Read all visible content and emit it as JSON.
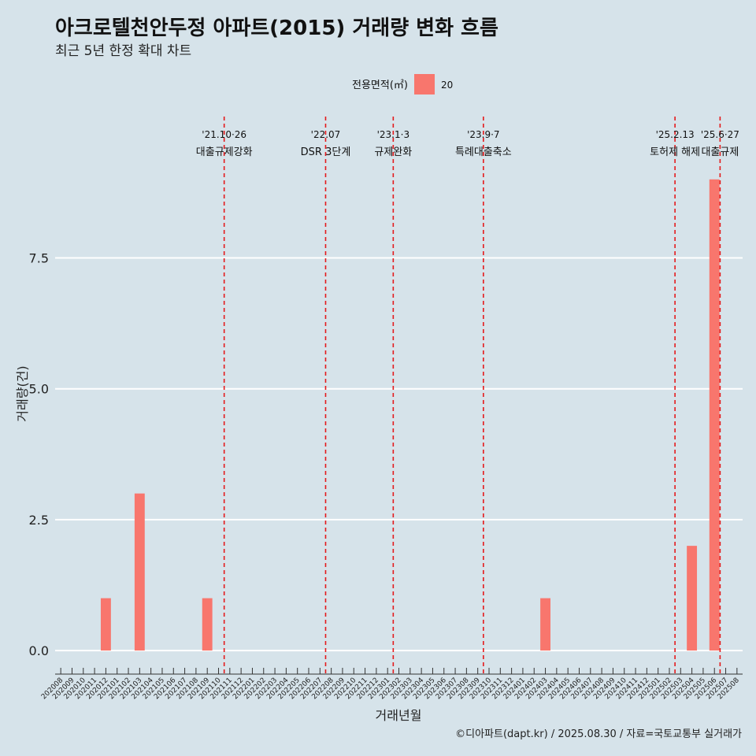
{
  "title": "아크로텔천안두정 아파트(2015) 거래량 변화 흐름",
  "subtitle": "최근 5년 한정 확대 차트",
  "legend": {
    "title": "전용면적(㎡)",
    "label": "20",
    "color": "#f8766d"
  },
  "caption": "©디아파트(dapt.kr) / 2025.08.30 / 자료=국토교통부 실거래가",
  "chart_data": {
    "type": "bar",
    "xlabel": "거래년월",
    "ylabel": "거래량(건)",
    "ylim": [
      -0.45,
      10.2
    ],
    "yticks": [
      0.0,
      2.5,
      5.0,
      7.5
    ],
    "ytick_labels": [
      "0.0",
      "2.5",
      "5.0",
      "7.5"
    ],
    "categories": [
      "202008",
      "202009",
      "202010",
      "202011",
      "202012",
      "202101",
      "202102",
      "202103",
      "202104",
      "202105",
      "202106",
      "202107",
      "202108",
      "202109",
      "202110",
      "202111",
      "202112",
      "202201",
      "202202",
      "202203",
      "202204",
      "202205",
      "202206",
      "202207",
      "202208",
      "202209",
      "202210",
      "202211",
      "202212",
      "202301",
      "202302",
      "202303",
      "202304",
      "202305",
      "202306",
      "202307",
      "202308",
      "202309",
      "202310",
      "202311",
      "202312",
      "202401",
      "202402",
      "202403",
      "202404",
      "202405",
      "202406",
      "202407",
      "202408",
      "202409",
      "202410",
      "202411",
      "202412",
      "202501",
      "202502",
      "202503",
      "202504",
      "202505",
      "202506",
      "202507",
      "202508"
    ],
    "series": [
      {
        "name": "20",
        "color": "#f8766d",
        "values": [
          0,
          0,
          0,
          0,
          1,
          0,
          0,
          3,
          0,
          0,
          0,
          0,
          0,
          1,
          0,
          0,
          0,
          0,
          0,
          0,
          0,
          0,
          0,
          0,
          0,
          0,
          0,
          0,
          0,
          0,
          0,
          0,
          0,
          0,
          0,
          0,
          0,
          0,
          0,
          0,
          0,
          0,
          0,
          1,
          0,
          0,
          0,
          0,
          0,
          0,
          0,
          0,
          0,
          0,
          0,
          0,
          2,
          0,
          9,
          0,
          0
        ]
      }
    ],
    "events": [
      {
        "position": 14.5,
        "date": "'21.10·26",
        "label": "대출규제강화"
      },
      {
        "position": 23.5,
        "date": "'22.07",
        "label": "DSR 3단계"
      },
      {
        "position": 29.5,
        "date": "'23.1·3",
        "label": "규제완화"
      },
      {
        "position": 37.5,
        "date": "'23.9·7",
        "label": "특례대출축소"
      },
      {
        "position": 54.5,
        "date": "'25.2.13",
        "label": "토허제 해제"
      },
      {
        "position": 58.5,
        "date": "'25.6·27",
        "label": "대출규제"
      }
    ],
    "grid": true,
    "legend_position": "top"
  }
}
